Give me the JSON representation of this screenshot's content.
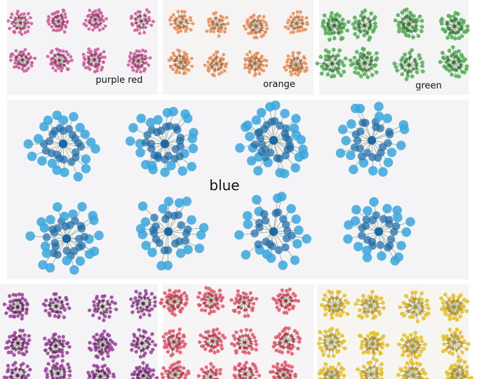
{
  "panels": [
    {
      "label": "purple red"
    },
    {
      "label": "orange"
    },
    {
      "label": "green"
    },
    {
      "label": "blue"
    }
  ]
}
